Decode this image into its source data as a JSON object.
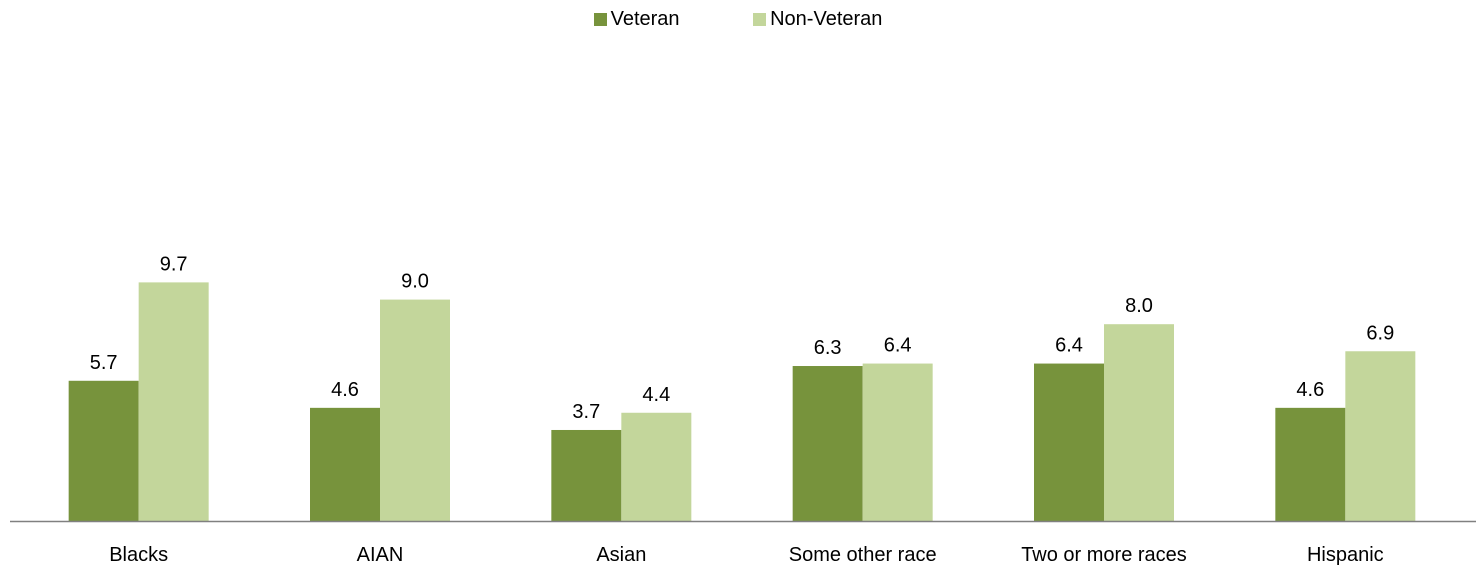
{
  "chart_data": {
    "type": "bar",
    "categories": [
      "Blacks",
      "AIAN",
      "Asian",
      "Some other race",
      "Two or more races",
      "Hispanic"
    ],
    "series": [
      {
        "name": "Veteran",
        "color": "#77933c",
        "values": [
          5.7,
          4.6,
          3.7,
          6.3,
          6.4,
          4.6
        ]
      },
      {
        "name": "Non-Veteran",
        "color": "#c3d69b",
        "values": [
          9.7,
          9.0,
          4.4,
          6.4,
          8.0,
          6.9
        ]
      }
    ],
    "data_labels": [
      [
        "5.7",
        "4.6",
        "3.7",
        "6.3",
        "6.4",
        "4.6"
      ],
      [
        "9.7",
        "9.0",
        "4.4",
        "6.4",
        "8.0",
        "6.9"
      ]
    ],
    "ylim": [
      0,
      12
    ],
    "grid": false,
    "legend_position": "top-center",
    "axis_color": "#808080"
  }
}
